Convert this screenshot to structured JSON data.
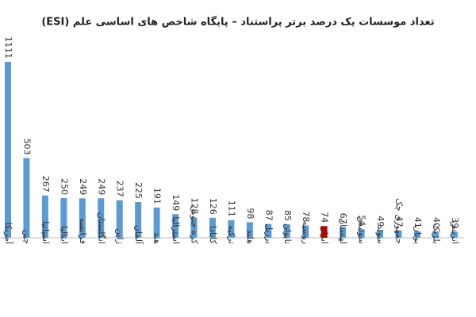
{
  "chart_data": {
    "type": "bar",
    "title": "تعداد موسسات یک درصد برتر پراستناد – پایگاه شاخص های اساسی علم (ESI)",
    "categories": [
      "آمریکا",
      "چین",
      "اسپانیا",
      "ایتالیا",
      "فرانسه",
      "انگلستان",
      "ژاپن",
      "آلمان",
      "هند",
      "استرالیا",
      "کره جنوبی",
      "کانادا",
      "ترکیه",
      "هلند",
      "برزیل",
      "تایوان",
      "روسیه",
      "ایران",
      "لهستان",
      "سوئیس",
      "سوئد",
      "جمهوری چک",
      "یونان",
      "بلژیک",
      "اتریش"
    ],
    "values": [
      1111,
      503,
      267,
      250,
      249,
      249,
      237,
      225,
      191,
      149,
      128,
      126,
      111,
      98,
      87,
      85,
      78,
      74,
      67,
      54,
      49,
      47,
      41,
      40,
      39
    ],
    "colors": [
      "#5b9bd5",
      "#5b9bd5",
      "#5b9bd5",
      "#5b9bd5",
      "#5b9bd5",
      "#5b9bd5",
      "#5b9bd5",
      "#5b9bd5",
      "#5b9bd5",
      "#5b9bd5",
      "#5b9bd5",
      "#5b9bd5",
      "#5b9bd5",
      "#5b9bd5",
      "#5b9bd5",
      "#5b9bd5",
      "#5b9bd5",
      "#c00000",
      "#5b9bd5",
      "#5b9bd5",
      "#5b9bd5",
      "#5b9bd5",
      "#5b9bd5",
      "#5b9bd5",
      "#5b9bd5"
    ]
  }
}
